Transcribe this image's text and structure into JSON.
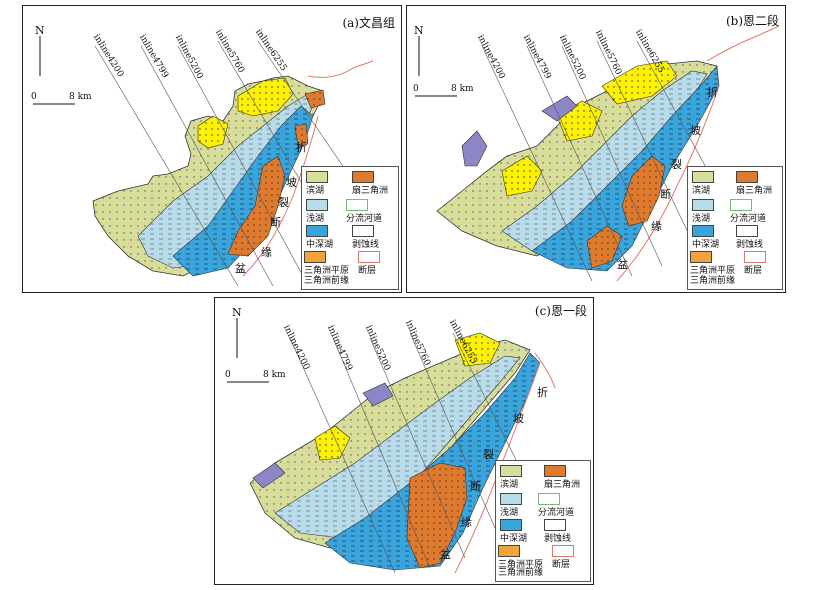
{
  "panels": [
    {
      "id": "a",
      "title": "(a)文昌组"
    },
    {
      "id": "b",
      "title": "(b)恩二段"
    },
    {
      "id": "c",
      "title": "(c)恩一段"
    }
  ],
  "north_label": "N",
  "scale": {
    "zero": "0",
    "distance": "8 km"
  },
  "inlines": [
    "inline4200",
    "inline4799",
    "inline5200",
    "inline5760",
    "inline6255"
  ],
  "fault_labels": [
    "折",
    "坡",
    "裂",
    "断",
    "缘",
    "盆"
  ],
  "legend": {
    "shore_lake": "滨湖",
    "fan_delta": "扇三角洲",
    "shallow_lake": "浅湖",
    "distributary_channel": "分流河道",
    "mid_deep_lake": "中深湖",
    "erosion_line": "剥蚀线",
    "delta_plain": "三角洲平原",
    "fault": "断层",
    "delta_front": "三角洲前缘"
  },
  "colors": {
    "shore_lake": "#d8de9a",
    "shallow_lake": "#b9dceb",
    "mid_deep_lake": "#3aa4dc",
    "fan_delta": "#df7a2c",
    "delta_plain": "#f2a33a",
    "delta_front": "#fff200",
    "erosion": "#8c86c6",
    "fault": "#e0786a",
    "inline": "#555555"
  }
}
